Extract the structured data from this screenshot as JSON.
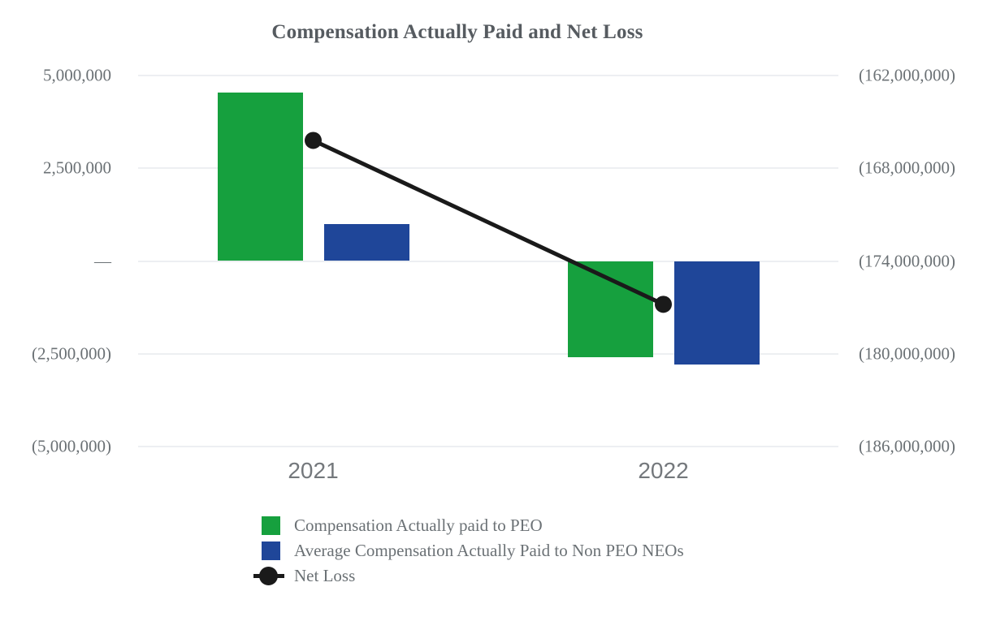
{
  "chart_data": {
    "type": "combo-bar-line",
    "title": "Compensation Actually Paid and Net Loss",
    "categories": [
      "2021",
      "2022"
    ],
    "bar_series": [
      {
        "name": "Compensation Actually paid to PEO",
        "color": "#16a03e",
        "values": [
          4550000,
          -2600000
        ]
      },
      {
        "name": "Average Compensation Actually Paid to Non PEO NEOs",
        "color": "#1f4699",
        "values": [
          1000000,
          -2800000
        ]
      }
    ],
    "line_series": {
      "name": "Net Loss",
      "color": "#1a1a1a",
      "axis": "right",
      "values": [
        -166200000,
        -176800000
      ]
    },
    "left_axis": {
      "range": [
        -5000000,
        5000000
      ],
      "ticks": [
        {
          "value": 5000000,
          "label": "5,000,000"
        },
        {
          "value": 2500000,
          "label": "2,500,000"
        },
        {
          "value": 0,
          "label": "—"
        },
        {
          "value": -2500000,
          "label": "(2,500,000)"
        },
        {
          "value": -5000000,
          "label": "(5,000,000)"
        }
      ]
    },
    "right_axis": {
      "range": [
        -186000000,
        -162000000
      ],
      "ticks": [
        {
          "value": -162000000,
          "label": "(162,000,000)"
        },
        {
          "value": -168000000,
          "label": "(168,000,000)"
        },
        {
          "value": -174000000,
          "label": "(174,000,000)"
        },
        {
          "value": -180000000,
          "label": "(180,000,000)"
        },
        {
          "value": -186000000,
          "label": "(186,000,000)"
        }
      ]
    },
    "grid": true,
    "legend_position": "bottom-left"
  },
  "colors": {
    "background": "#ffffff",
    "gridline": "#edeff2",
    "title_text": "#565b60",
    "axis_text": "#6b7175",
    "x_axis_text": "#74787c"
  }
}
